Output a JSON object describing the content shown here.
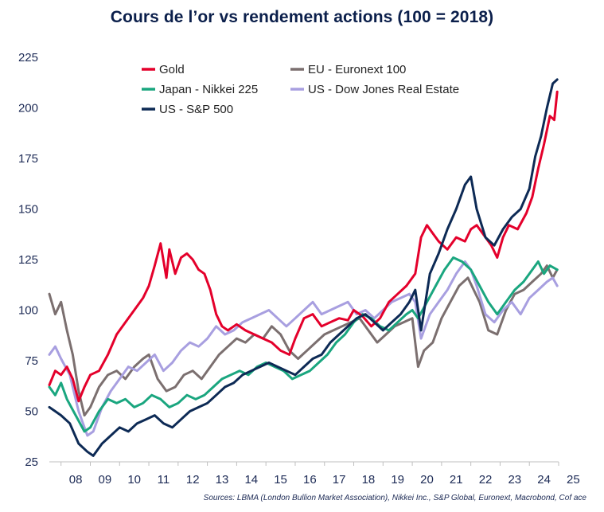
{
  "chart_data": {
    "type": "line",
    "title": "Cours de l’or vs rendement actions (100 = 2018)",
    "source": "Sources: LBMA (London Bullion Market Association), Nikkei Inc., S&P Global, Euronext, Macrobond, Cof   ace",
    "xlabel": "",
    "ylabel": "",
    "ylim": [
      25,
      225
    ],
    "xlim": [
      2007.6,
      2025
    ],
    "y_ticks": [
      25,
      50,
      75,
      100,
      125,
      150,
      175,
      200,
      225
    ],
    "x_ticks": [
      "08",
      "09",
      "10",
      "11",
      "12",
      "13",
      "14",
      "15",
      "16",
      "17",
      "18",
      "19",
      "20",
      "21",
      "22",
      "23",
      "24",
      "25"
    ],
    "grid": false,
    "legend_position": "top-left",
    "series": [
      {
        "name": "Gold",
        "color": "#e4002b",
        "x": [
          2007.6,
          2007.8,
          2008.0,
          2008.2,
          2008.4,
          2008.6,
          2008.8,
          2009.0,
          2009.3,
          2009.6,
          2009.9,
          2010.2,
          2010.5,
          2010.8,
          2011.0,
          2011.2,
          2011.4,
          2011.6,
          2011.7,
          2011.9,
          2012.1,
          2012.3,
          2012.5,
          2012.7,
          2012.9,
          2013.1,
          2013.3,
          2013.5,
          2013.7,
          2014.0,
          2014.3,
          2014.6,
          2014.9,
          2015.2,
          2015.5,
          2015.8,
          2016.0,
          2016.3,
          2016.6,
          2016.9,
          2017.2,
          2017.5,
          2017.8,
          2018.0,
          2018.3,
          2018.6,
          2018.9,
          2019.2,
          2019.5,
          2019.8,
          2020.1,
          2020.3,
          2020.5,
          2020.7,
          2020.9,
          2021.2,
          2021.5,
          2021.8,
          2022.0,
          2022.2,
          2022.4,
          2022.7,
          2022.9,
          2023.1,
          2023.3,
          2023.6,
          2023.9,
          2024.1,
          2024.3,
          2024.5,
          2024.7,
          2024.85,
          2024.95
        ],
        "values": [
          63,
          70,
          68,
          72,
          66,
          55,
          62,
          68,
          70,
          78,
          88,
          94,
          100,
          106,
          112,
          122,
          133,
          116,
          130,
          118,
          126,
          128,
          125,
          120,
          118,
          110,
          98,
          92,
          90,
          93,
          90,
          88,
          86,
          84,
          80,
          78,
          86,
          96,
          98,
          92,
          94,
          96,
          95,
          100,
          97,
          92,
          96,
          104,
          108,
          112,
          118,
          136,
          142,
          138,
          134,
          130,
          136,
          134,
          140,
          142,
          138,
          132,
          126,
          136,
          142,
          140,
          148,
          156,
          170,
          182,
          196,
          194,
          208
        ]
      },
      {
        "name": "EU - Euronext 100",
        "color": "#7b6f6f",
        "x": [
          2007.6,
          2007.8,
          2008.0,
          2008.2,
          2008.4,
          2008.6,
          2008.8,
          2009.0,
          2009.3,
          2009.6,
          2009.9,
          2010.2,
          2010.5,
          2010.8,
          2011.0,
          2011.3,
          2011.6,
          2011.9,
          2012.2,
          2012.5,
          2012.8,
          2013.1,
          2013.4,
          2013.7,
          2014.0,
          2014.3,
          2014.6,
          2014.9,
          2015.2,
          2015.5,
          2015.8,
          2016.1,
          2016.4,
          2016.7,
          2017.0,
          2017.3,
          2017.6,
          2017.9,
          2018.2,
          2018.5,
          2018.8,
          2019.1,
          2019.4,
          2019.7,
          2020.0,
          2020.2,
          2020.4,
          2020.7,
          2021.0,
          2021.3,
          2021.6,
          2021.9,
          2022.1,
          2022.3,
          2022.6,
          2022.9,
          2023.2,
          2023.5,
          2023.8,
          2024.1,
          2024.4,
          2024.6,
          2024.8,
          2024.95
        ],
        "values": [
          108,
          98,
          104,
          90,
          78,
          60,
          48,
          52,
          62,
          68,
          70,
          66,
          72,
          76,
          78,
          66,
          60,
          62,
          68,
          70,
          66,
          72,
          78,
          82,
          86,
          84,
          88,
          86,
          92,
          88,
          80,
          76,
          80,
          84,
          88,
          90,
          92,
          94,
          96,
          90,
          84,
          88,
          92,
          94,
          96,
          72,
          80,
          84,
          96,
          104,
          112,
          116,
          110,
          104,
          90,
          88,
          100,
          108,
          110,
          114,
          118,
          122,
          116,
          120
        ]
      },
      {
        "name": "Japan - Nikkei 225",
        "color": "#1aa67f",
        "x": [
          2007.6,
          2007.8,
          2008.0,
          2008.2,
          2008.5,
          2008.8,
          2009.0,
          2009.3,
          2009.6,
          2009.9,
          2010.2,
          2010.5,
          2010.8,
          2011.1,
          2011.4,
          2011.7,
          2012.0,
          2012.3,
          2012.6,
          2012.9,
          2013.2,
          2013.5,
          2013.8,
          2014.1,
          2014.4,
          2014.7,
          2015.0,
          2015.3,
          2015.6,
          2015.9,
          2016.2,
          2016.5,
          2016.8,
          2017.1,
          2017.4,
          2017.7,
          2018.0,
          2018.3,
          2018.6,
          2018.9,
          2019.2,
          2019.5,
          2019.8,
          2020.0,
          2020.2,
          2020.5,
          2020.8,
          2021.1,
          2021.4,
          2021.7,
          2022.0,
          2022.3,
          2022.6,
          2022.9,
          2023.2,
          2023.5,
          2023.8,
          2024.1,
          2024.3,
          2024.5,
          2024.7,
          2024.95
        ],
        "values": [
          62,
          58,
          64,
          56,
          48,
          40,
          42,
          50,
          56,
          54,
          56,
          52,
          54,
          58,
          56,
          52,
          54,
          58,
          56,
          58,
          62,
          66,
          68,
          70,
          68,
          72,
          74,
          72,
          70,
          66,
          68,
          70,
          74,
          78,
          84,
          88,
          94,
          98,
          96,
          92,
          90,
          94,
          98,
          100,
          96,
          104,
          112,
          120,
          126,
          124,
          120,
          112,
          104,
          98,
          104,
          110,
          114,
          120,
          124,
          118,
          122,
          120
        ]
      },
      {
        "name": "US - Dow Jones Real Estate",
        "color": "#a89fe0",
        "x": [
          2007.6,
          2007.8,
          2008.0,
          2008.3,
          2008.6,
          2008.9,
          2009.1,
          2009.4,
          2009.7,
          2010.0,
          2010.3,
          2010.6,
          2010.9,
          2011.2,
          2011.5,
          2011.8,
          2012.1,
          2012.4,
          2012.7,
          2013.0,
          2013.3,
          2013.6,
          2013.9,
          2014.2,
          2014.5,
          2014.8,
          2015.1,
          2015.4,
          2015.7,
          2016.0,
          2016.3,
          2016.6,
          2016.9,
          2017.2,
          2017.5,
          2017.8,
          2018.1,
          2018.4,
          2018.7,
          2019.0,
          2019.3,
          2019.6,
          2019.9,
          2020.1,
          2020.3,
          2020.6,
          2020.9,
          2021.2,
          2021.5,
          2021.8,
          2022.0,
          2022.2,
          2022.5,
          2022.8,
          2023.1,
          2023.4,
          2023.7,
          2024.0,
          2024.3,
          2024.6,
          2024.8,
          2024.95
        ],
        "values": [
          78,
          82,
          76,
          68,
          50,
          38,
          40,
          52,
          60,
          66,
          72,
          70,
          74,
          78,
          70,
          74,
          80,
          84,
          82,
          86,
          92,
          88,
          90,
          94,
          96,
          98,
          100,
          96,
          92,
          96,
          100,
          104,
          98,
          100,
          102,
          104,
          98,
          100,
          96,
          100,
          104,
          106,
          108,
          104,
          86,
          98,
          104,
          110,
          118,
          124,
          120,
          112,
          98,
          94,
          100,
          104,
          98,
          106,
          110,
          114,
          116,
          112
        ]
      },
      {
        "name": "US - S&P 500",
        "color": "#0d2a55",
        "x": [
          2007.6,
          2007.8,
          2008.0,
          2008.3,
          2008.6,
          2008.9,
          2009.1,
          2009.4,
          2009.7,
          2010.0,
          2010.3,
          2010.6,
          2010.9,
          2011.2,
          2011.5,
          2011.8,
          2012.1,
          2012.4,
          2012.7,
          2013.0,
          2013.3,
          2013.6,
          2013.9,
          2014.2,
          2014.5,
          2014.8,
          2015.1,
          2015.4,
          2015.7,
          2016.0,
          2016.3,
          2016.6,
          2016.9,
          2017.2,
          2017.5,
          2017.8,
          2018.1,
          2018.4,
          2018.7,
          2019.0,
          2019.3,
          2019.6,
          2019.9,
          2020.1,
          2020.3,
          2020.6,
          2020.9,
          2021.2,
          2021.5,
          2021.8,
          2022.0,
          2022.2,
          2022.5,
          2022.8,
          2023.1,
          2023.4,
          2023.7,
          2024.0,
          2024.2,
          2024.4,
          2024.6,
          2024.8,
          2024.95
        ],
        "values": [
          52,
          50,
          48,
          44,
          34,
          30,
          28,
          34,
          38,
          42,
          40,
          44,
          46,
          48,
          44,
          42,
          46,
          50,
          52,
          54,
          58,
          62,
          64,
          68,
          70,
          72,
          74,
          72,
          70,
          68,
          72,
          76,
          78,
          84,
          88,
          92,
          96,
          98,
          94,
          90,
          94,
          98,
          104,
          110,
          90,
          118,
          128,
          140,
          150,
          162,
          166,
          150,
          136,
          132,
          140,
          146,
          150,
          160,
          176,
          186,
          200,
          212,
          214
        ]
      }
    ]
  }
}
